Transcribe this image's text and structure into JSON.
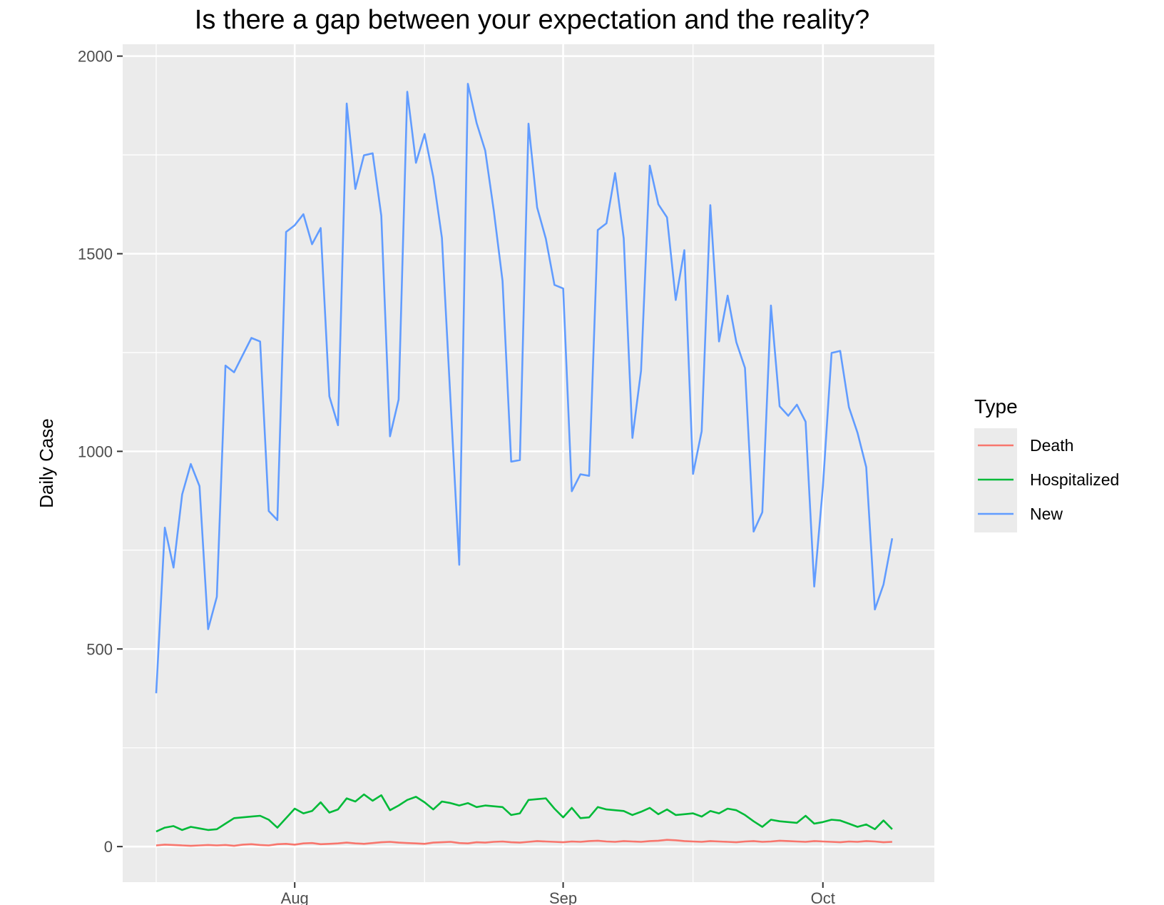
{
  "chart_data": {
    "type": "line",
    "title": "Is there a gap between your expectation and the reality?",
    "xlabel": "",
    "ylabel": "Daily Case",
    "x_ticks": [
      "Aug",
      "Sep",
      "Oct"
    ],
    "y_ticks": [
      "0",
      "500",
      "1000",
      "1500",
      "2000"
    ],
    "ylim": [
      -90,
      2030
    ],
    "grid": true,
    "legend_title": "Type",
    "legend_position": "right",
    "x_start": "2020-07-16",
    "x_end": "2020-10-10",
    "series": [
      {
        "name": "Death",
        "color": "#F8766D",
        "values": [
          3,
          5,
          4,
          3,
          2,
          3,
          4,
          3,
          4,
          2,
          5,
          6,
          4,
          3,
          6,
          7,
          5,
          8,
          9,
          6,
          7,
          8,
          10,
          8,
          7,
          9,
          11,
          12,
          10,
          9,
          8,
          7,
          10,
          11,
          12,
          9,
          8,
          11,
          10,
          12,
          13,
          11,
          10,
          12,
          14,
          13,
          12,
          11,
          13,
          12,
          14,
          15,
          13,
          12,
          14,
          13,
          12,
          14,
          15,
          17,
          16,
          14,
          13,
          12,
          14,
          13,
          12,
          11,
          13,
          14,
          12,
          13,
          15,
          14,
          13,
          12,
          14,
          13,
          12,
          11,
          13,
          12,
          14,
          13,
          11,
          12
        ]
      },
      {
        "name": "Hospitalized",
        "color": "#00BA38",
        "values": [
          38,
          48,
          52,
          42,
          50,
          46,
          42,
          44,
          58,
          72,
          74,
          76,
          78,
          68,
          48,
          72,
          96,
          84,
          90,
          112,
          86,
          94,
          122,
          114,
          132,
          116,
          130,
          92,
          104,
          118,
          126,
          112,
          94,
          114,
          110,
          104,
          110,
          100,
          104,
          102,
          100,
          80,
          84,
          118,
          120,
          122,
          96,
          74,
          98,
          72,
          74,
          100,
          94,
          92,
          90,
          80,
          88,
          98,
          82,
          94,
          80,
          82,
          84,
          76,
          90,
          84,
          96,
          92,
          80,
          64,
          50,
          68,
          64,
          62,
          60,
          78,
          58,
          62,
          68,
          66,
          58,
          50,
          56,
          44,
          66,
          44
        ]
      },
      {
        "name": "New",
        "color": "#619CFF",
        "values": [
          388,
          807,
          706,
          891,
          968,
          912,
          550,
          632,
          1217,
          1200,
          1244,
          1287,
          1278,
          849,
          826,
          1555,
          1572,
          1600,
          1524,
          1565,
          1139,
          1066,
          1880,
          1664,
          1749,
          1754,
          1596,
          1038,
          1131,
          1910,
          1730,
          1803,
          1694,
          1540,
          1127,
          713,
          1930,
          1831,
          1761,
          1608,
          1431,
          974,
          978,
          1829,
          1617,
          1538,
          1421,
          1412,
          899,
          942,
          938,
          1560,
          1577,
          1704,
          1539,
          1034,
          1204,
          1723,
          1625,
          1592,
          1383,
          1509,
          943,
          1051,
          1623,
          1278,
          1394,
          1276,
          1211,
          797,
          846,
          1369,
          1114,
          1090,
          1118,
          1075,
          658,
          912,
          1249,
          1254,
          1112,
          1047,
          960,
          600,
          663,
          780
        ]
      }
    ]
  }
}
